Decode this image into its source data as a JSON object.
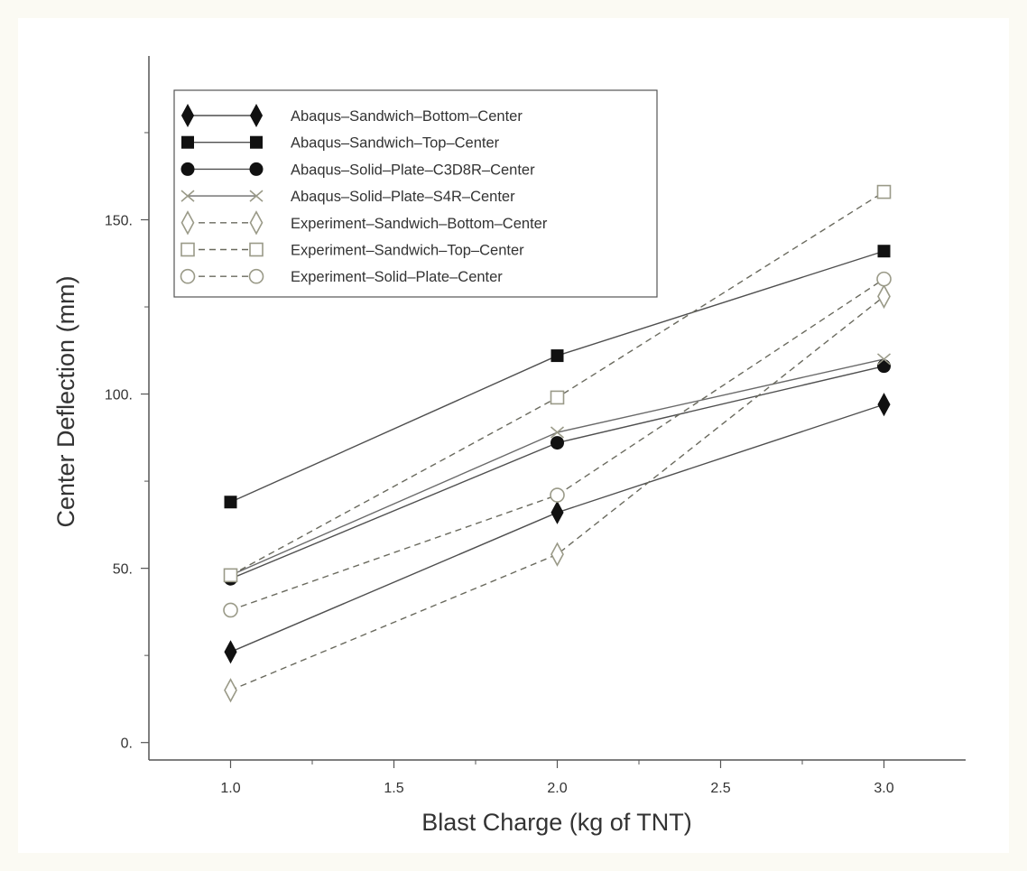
{
  "chart_data": {
    "type": "line",
    "title": "",
    "xlabel": "Blast Charge (kg of TNT)",
    "ylabel": "Center Deflection (mm)",
    "xlim": [
      0.75,
      3.25
    ],
    "ylim": [
      -5,
      197
    ],
    "x_ticks": [
      1.0,
      1.5,
      2.0,
      2.5,
      3.0
    ],
    "x_tick_labels": [
      "1.0",
      "1.5",
      "2.0",
      "2.5",
      "3.0"
    ],
    "y_ticks": [
      0,
      50,
      100,
      150
    ],
    "y_tick_labels": [
      "0.",
      "50.",
      "100.",
      "150."
    ],
    "grid": false,
    "legend_position": "top-left",
    "x": [
      1.0,
      2.0,
      3.0
    ],
    "series": [
      {
        "name": "Abaqus–Sandwich–Bottom–Center",
        "values": [
          26,
          66,
          97
        ],
        "marker": "diamond-filled",
        "dash": "solid",
        "color": "#4f4f4f",
        "marker_color": "#111111"
      },
      {
        "name": "Abaqus–Sandwich–Top–Center",
        "values": [
          69,
          111,
          141
        ],
        "marker": "square-filled",
        "dash": "solid",
        "color": "#4f4f4f",
        "marker_color": "#111111"
      },
      {
        "name": "Abaqus–Solid–Plate–C3D8R–Center",
        "values": [
          47,
          86,
          108
        ],
        "marker": "circle-filled",
        "dash": "solid",
        "color": "#4f4f4f",
        "marker_color": "#111111"
      },
      {
        "name": "Abaqus–Solid–Plate–S4R–Center",
        "values": [
          48,
          89,
          110
        ],
        "marker": "x",
        "dash": "solid",
        "color": "#6a6a6a",
        "marker_color": "#9a9a88"
      },
      {
        "name": "Experiment–Sandwich–Bottom–Center",
        "values": [
          15,
          54,
          128
        ],
        "marker": "diamond-open",
        "dash": "dashed",
        "color": "#6a6a5e",
        "marker_color": "#9a9a88"
      },
      {
        "name": "Experiment–Sandwich–Top–Center",
        "values": [
          48,
          99,
          158
        ],
        "marker": "square-open",
        "dash": "dashed",
        "color": "#6a6a5e",
        "marker_color": "#9a9a88"
      },
      {
        "name": "Experiment–Solid–Plate–Center",
        "values": [
          38,
          71,
          133
        ],
        "marker": "circle-open",
        "dash": "dashed",
        "color": "#6a6a5e",
        "marker_color": "#9a9a88"
      }
    ]
  }
}
